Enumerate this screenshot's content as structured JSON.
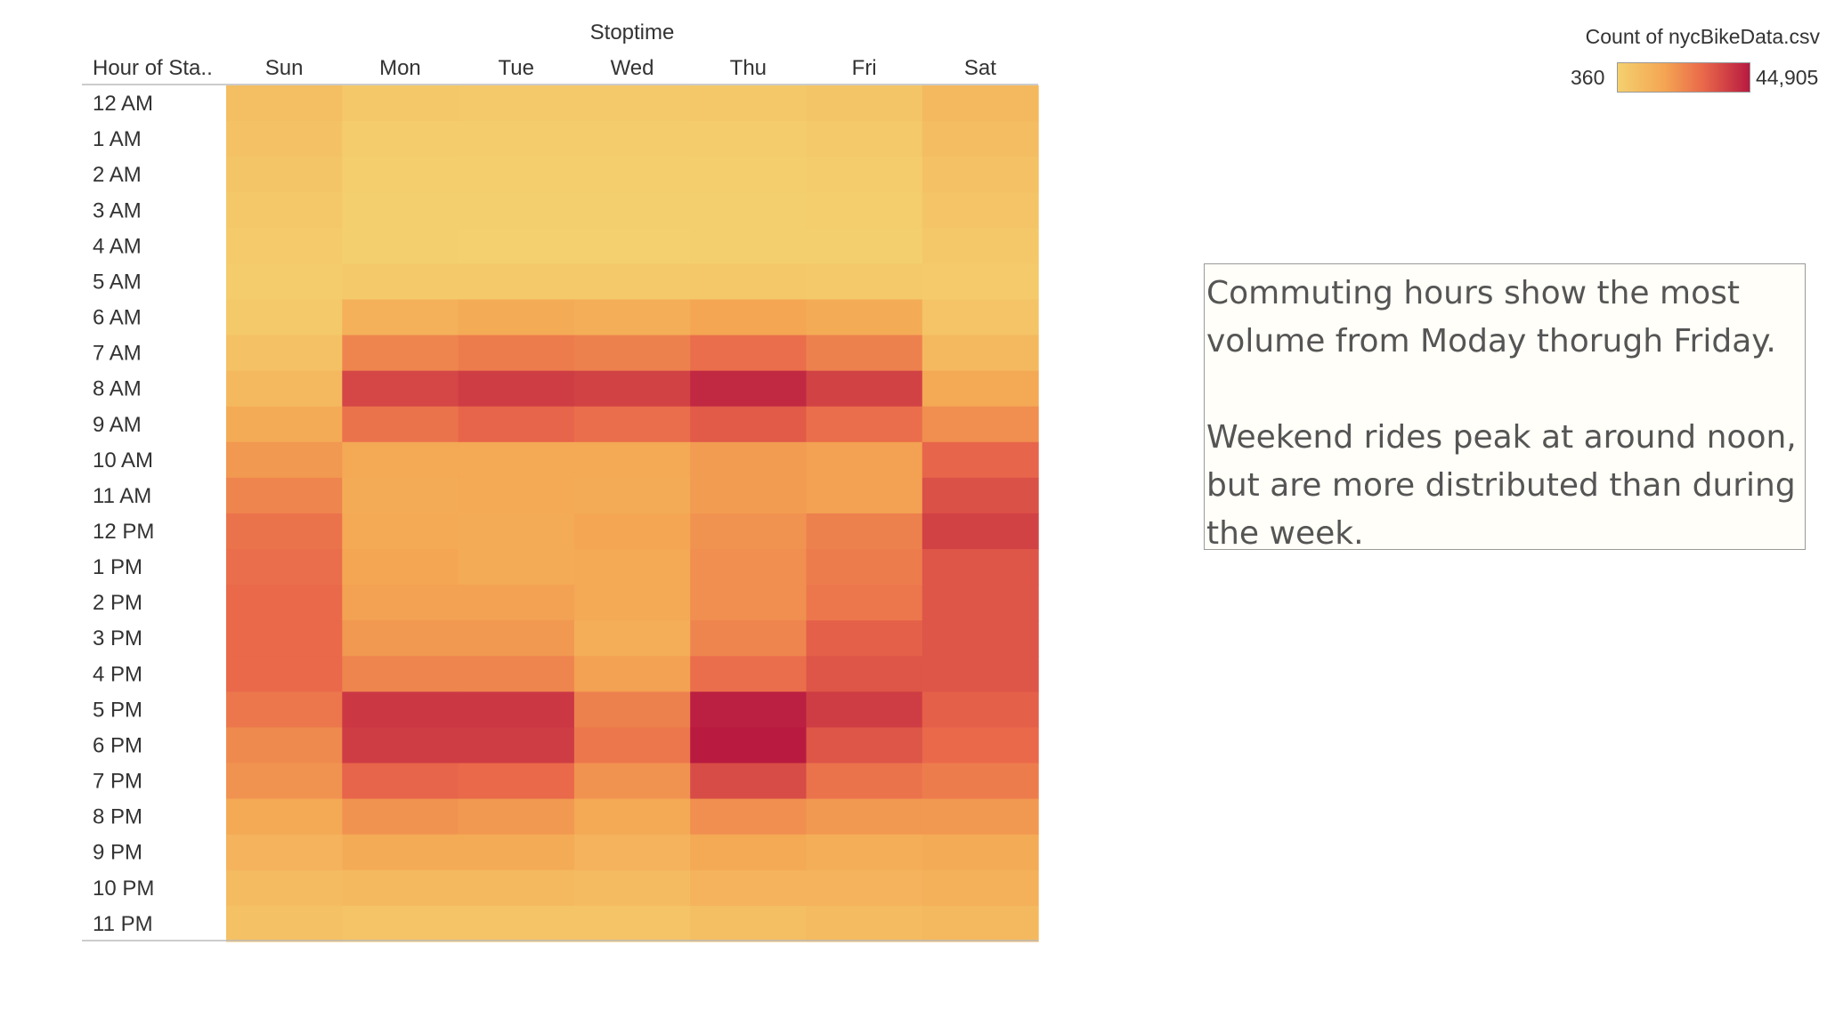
{
  "chart_data": {
    "type": "heatmap",
    "column_header": "Stoptime",
    "row_header": "Hour of Sta..",
    "columns": [
      "Sun",
      "Mon",
      "Tue",
      "Wed",
      "Thu",
      "Fri",
      "Sat"
    ],
    "rows": [
      "12 AM",
      "1 AM",
      "2 AM",
      "3 AM",
      "4 AM",
      "5 AM",
      "6 AM",
      "7 AM",
      "8 AM",
      "9 AM",
      "10 AM",
      "11 AM",
      "12 PM",
      "1 PM",
      "2 PM",
      "3 PM",
      "4 PM",
      "5 PM",
      "6 PM",
      "7 PM",
      "8 PM",
      "9 PM",
      "10 PM",
      "11 PM"
    ],
    "values": [
      [
        7000,
        3500,
        3000,
        3000,
        3500,
        4500,
        9000
      ],
      [
        5500,
        2000,
        1800,
        1800,
        2000,
        3000,
        7500
      ],
      [
        4500,
        1200,
        1000,
        1000,
        1200,
        2000,
        6000
      ],
      [
        3500,
        800,
        700,
        700,
        800,
        1300,
        5000
      ],
      [
        2500,
        600,
        500,
        500,
        600,
        900,
        3500
      ],
      [
        2000,
        3000,
        3000,
        3000,
        3500,
        3000,
        2500
      ],
      [
        3000,
        12000,
        14000,
        13000,
        16000,
        14000,
        5000
      ],
      [
        6000,
        23000,
        25000,
        24000,
        28000,
        24000,
        9000
      ],
      [
        9000,
        36000,
        38000,
        37000,
        42000,
        37000,
        15000
      ],
      [
        14000,
        27000,
        30000,
        28000,
        32000,
        28000,
        21000
      ],
      [
        19000,
        15000,
        15000,
        15000,
        18000,
        17000,
        30000
      ],
      [
        23000,
        14000,
        15000,
        14000,
        18000,
        17000,
        34000
      ],
      [
        27000,
        15000,
        14000,
        16000,
        20000,
        24000,
        37000
      ],
      [
        28000,
        16000,
        14000,
        15000,
        21000,
        25000,
        33000
      ],
      [
        29000,
        17000,
        17000,
        15000,
        21000,
        26000,
        33000
      ],
      [
        29000,
        19000,
        19000,
        13000,
        23000,
        31000,
        33000
      ],
      [
        29000,
        23000,
        23000,
        17000,
        28000,
        33000,
        33000
      ],
      [
        26000,
        39000,
        39000,
        24000,
        44000,
        38000,
        31000
      ],
      [
        22000,
        38000,
        38000,
        26000,
        44905,
        33000,
        29000
      ],
      [
        20000,
        30000,
        29000,
        20000,
        35000,
        27000,
        25000
      ],
      [
        15000,
        20000,
        19000,
        15000,
        21000,
        19000,
        19000
      ],
      [
        11000,
        14000,
        14000,
        11000,
        15000,
        13000,
        14000
      ],
      [
        8000,
        9000,
        9000,
        8000,
        11000,
        11000,
        12000
      ],
      [
        6000,
        5000,
        5000,
        5000,
        7000,
        8000,
        9000
      ]
    ],
    "color_scale": {
      "min": 360,
      "max": 44905,
      "colors": [
        "#f4d06e",
        "#f4a653",
        "#e9684a",
        "#b81a40"
      ]
    },
    "legend": {
      "title": "Count of nycBikeData.csv",
      "min_label": "360",
      "max_label": "44,905",
      "position": "top-right"
    }
  },
  "annotation": {
    "line1": "Commuting hours show the most",
    "line2": "volume from Moday thorugh Friday.",
    "line3": "Weekend rides peak at around noon,",
    "line4": "but are more distributed than during",
    "line5": "the week."
  }
}
